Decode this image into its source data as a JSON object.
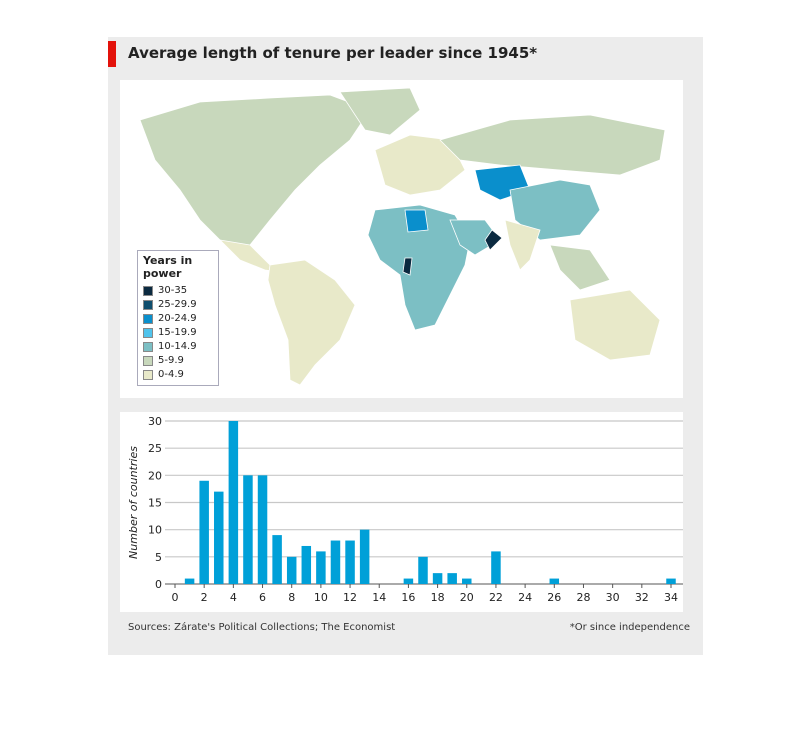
{
  "title": "Average length of tenure per leader since 1945*",
  "legend": {
    "title": "Years in power",
    "items": [
      {
        "label": "30-35",
        "color": "#0b2a40"
      },
      {
        "label": "25-29.9",
        "color": "#0f4e6e"
      },
      {
        "label": "20-24.9",
        "color": "#0a8fcc"
      },
      {
        "label": "15-19.9",
        "color": "#4fc3ec"
      },
      {
        "label": "10-14.9",
        "color": "#7cbfc4"
      },
      {
        "label": "5-9.9",
        "color": "#c8d8bc"
      },
      {
        "label": "0-4.9",
        "color": "#e8e9c9"
      }
    ]
  },
  "chart_data": {
    "type": "bar",
    "x": [
      1,
      2,
      3,
      4,
      5,
      6,
      7,
      8,
      9,
      10,
      11,
      12,
      13,
      16,
      17,
      18,
      19,
      20,
      22,
      26,
      34
    ],
    "values": [
      1,
      19,
      17,
      30,
      20,
      20,
      9,
      5,
      7,
      6,
      8,
      8,
      10,
      1,
      5,
      2,
      2,
      1,
      6,
      1,
      1
    ],
    "xlabel": "Years in power",
    "ylabel": "Number of countries",
    "xlim": [
      0,
      35
    ],
    "ylim": [
      0,
      30
    ],
    "xticks": [
      0,
      2,
      4,
      6,
      8,
      10,
      12,
      14,
      16,
      18,
      20,
      22,
      24,
      26,
      28,
      30,
      32,
      34
    ],
    "yticks": [
      0,
      5,
      10,
      15,
      20,
      25,
      30
    ],
    "grid": "horizontal",
    "bar_color": "#00a0d8"
  },
  "sources": "Sources: Zárate's Political Collections; The Economist",
  "note": "*Or since independence"
}
